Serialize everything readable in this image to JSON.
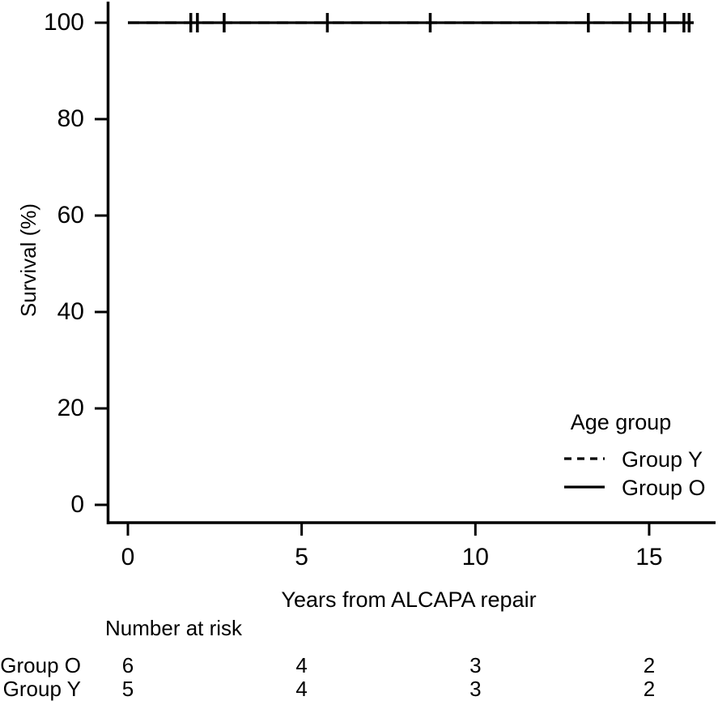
{
  "colors": {
    "foreground": "#000000",
    "background": "#ffffff"
  },
  "chart_data": {
    "type": "line",
    "subtype": "kaplan-meier-survival-curve",
    "title": "",
    "xlabel": "Years from ALCAPA repair",
    "ylabel": "Survival (%)",
    "xlim": [
      0,
      16.9
    ],
    "ylim": [
      0,
      100
    ],
    "x_ticks": [
      0,
      5,
      10,
      15
    ],
    "y_ticks": [
      100,
      80,
      60,
      40,
      20,
      0
    ],
    "grid": false,
    "legend": {
      "title": "Age group",
      "position": "bottom-right",
      "entries": [
        {
          "label": "Group Y",
          "line_style": "dashed"
        },
        {
          "label": "Group O",
          "line_style": "solid"
        }
      ]
    },
    "series": [
      {
        "name": "Group Y",
        "line_style": "dashed",
        "survival_percent": 100,
        "x_start": 0,
        "x_end": 16.28,
        "censor_times": [
          2.0,
          5.74,
          14.45,
          15.0,
          16.0
        ]
      },
      {
        "name": "Group O",
        "line_style": "solid",
        "survival_percent": 100,
        "x_start": 0,
        "x_end": 16.28,
        "censor_times": [
          1.81,
          2.77,
          8.7,
          13.25,
          15.45,
          16.15
        ]
      }
    ],
    "risk_table": {
      "header": "Number at risk",
      "time_points": [
        0,
        5,
        10,
        15
      ],
      "rows": [
        {
          "label": "Group O",
          "values": [
            6,
            4,
            3,
            2
          ]
        },
        {
          "label": "Group Y",
          "values": [
            5,
            4,
            3,
            2
          ]
        }
      ]
    }
  }
}
